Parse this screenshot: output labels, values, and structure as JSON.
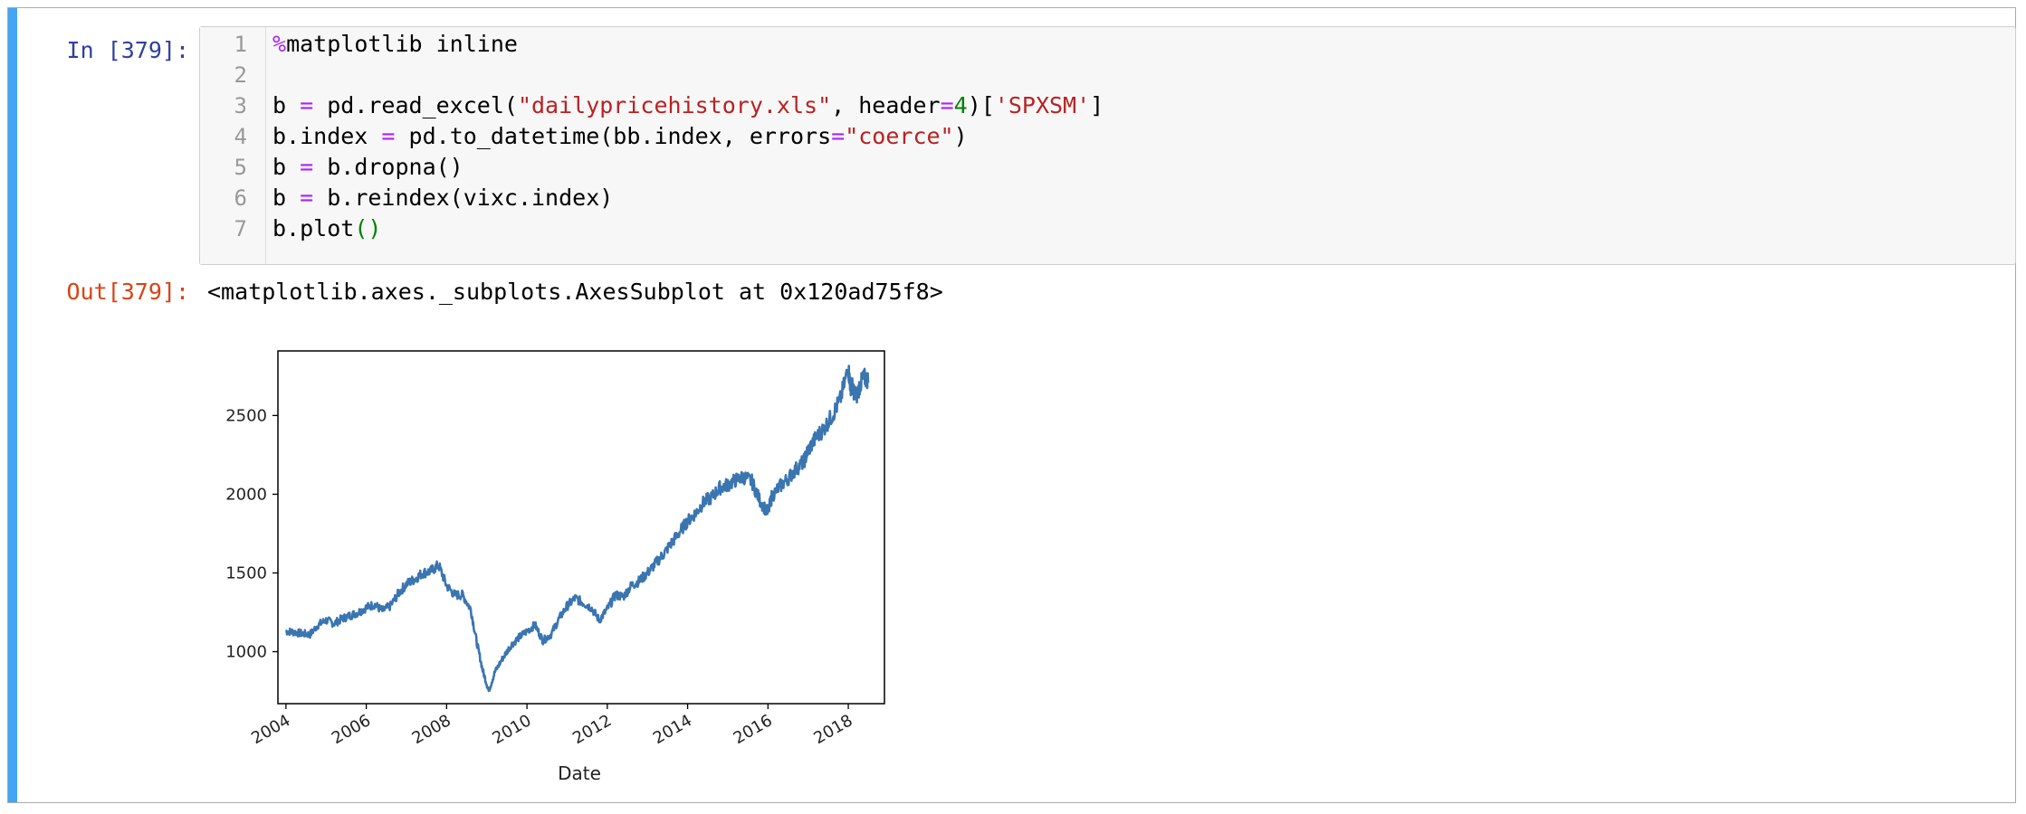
{
  "cell": {
    "in_prompt": "In [379]:",
    "out_prompt": "Out[379]:",
    "code_lines": [
      {
        "num": "1",
        "tokens": [
          {
            "t": "%",
            "c": "k"
          },
          {
            "t": "matplotlib inline",
            "c": ""
          }
        ]
      },
      {
        "num": "2",
        "tokens": []
      },
      {
        "num": "3",
        "tokens": [
          {
            "t": "b ",
            "c": ""
          },
          {
            "t": "=",
            "c": "k"
          },
          {
            "t": " pd.read_excel(",
            "c": ""
          },
          {
            "t": "\"dailypricehistory.xls\"",
            "c": "s"
          },
          {
            "t": ", header",
            "c": ""
          },
          {
            "t": "=",
            "c": "k"
          },
          {
            "t": "4",
            "c": "n"
          },
          {
            "t": ")[",
            "c": ""
          },
          {
            "t": "'SPXSM'",
            "c": "s"
          },
          {
            "t": "]",
            "c": ""
          }
        ]
      },
      {
        "num": "4",
        "tokens": [
          {
            "t": "b.index ",
            "c": ""
          },
          {
            "t": "=",
            "c": "k"
          },
          {
            "t": " pd.to_datetime(bb.index, errors",
            "c": ""
          },
          {
            "t": "=",
            "c": "k"
          },
          {
            "t": "\"coerce\"",
            "c": "s"
          },
          {
            "t": ")",
            "c": ""
          }
        ]
      },
      {
        "num": "5",
        "tokens": [
          {
            "t": "b ",
            "c": ""
          },
          {
            "t": "=",
            "c": "k"
          },
          {
            "t": " b.dropna()",
            "c": ""
          }
        ]
      },
      {
        "num": "6",
        "tokens": [
          {
            "t": "b ",
            "c": ""
          },
          {
            "t": "=",
            "c": "k"
          },
          {
            "t": " b.reindex(vixc.index)",
            "c": ""
          }
        ]
      },
      {
        "num": "7",
        "tokens": [
          {
            "t": "b.plot",
            "c": ""
          },
          {
            "t": "()",
            "c": "n"
          }
        ]
      }
    ],
    "output_text": "<matplotlib.axes._subplots.AxesSubplot at 0x120ad75f8>"
  },
  "chart_data": {
    "type": "line",
    "xlabel": "Date",
    "ylabel": "",
    "title": "",
    "xlim": [
      2003.8,
      2018.9
    ],
    "ylim": [
      670,
      2910
    ],
    "x_ticks": [
      2004,
      2006,
      2008,
      2010,
      2012,
      2014,
      2016,
      2018
    ],
    "x_tick_labels": [
      "2004",
      "2006",
      "2008",
      "2010",
      "2012",
      "2014",
      "2016",
      "2018"
    ],
    "y_ticks": [
      1000,
      1500,
      2000,
      2500
    ],
    "y_tick_labels": [
      "1000",
      "1500",
      "2000",
      "2500"
    ],
    "grid": false,
    "line_color": "#3a75b0",
    "series": [
      {
        "x": [
          2004.0,
          2004.2,
          2004.4,
          2004.6,
          2004.8,
          2005.0,
          2005.2,
          2005.4,
          2005.6,
          2005.8,
          2006.0,
          2006.2,
          2006.4,
          2006.6,
          2006.8,
          2007.0,
          2007.2,
          2007.4,
          2007.6,
          2007.8,
          2008.0,
          2008.2,
          2008.4,
          2008.6,
          2008.75,
          2008.9,
          2009.05,
          2009.2,
          2009.4,
          2009.6,
          2009.8,
          2010.0,
          2010.2,
          2010.4,
          2010.6,
          2010.8,
          2011.0,
          2011.2,
          2011.4,
          2011.6,
          2011.8,
          2012.0,
          2012.2,
          2012.4,
          2012.6,
          2012.8,
          2013.0,
          2013.2,
          2013.4,
          2013.6,
          2013.8,
          2014.0,
          2014.2,
          2014.4,
          2014.6,
          2014.8,
          2015.0,
          2015.2,
          2015.4,
          2015.6,
          2015.8,
          2016.0,
          2016.1,
          2016.3,
          2016.5,
          2016.7,
          2016.9,
          2017.0,
          2017.2,
          2017.4,
          2017.6,
          2017.8,
          2018.0,
          2018.05,
          2018.1,
          2018.2,
          2018.3,
          2018.4,
          2018.5
        ],
        "values": [
          1130,
          1125,
          1115,
          1110,
          1170,
          1200,
          1180,
          1210,
          1230,
          1250,
          1280,
          1300,
          1260,
          1290,
          1370,
          1430,
          1460,
          1500,
          1510,
          1550,
          1420,
          1360,
          1360,
          1270,
          1060,
          880,
          750,
          870,
          960,
          1040,
          1090,
          1130,
          1170,
          1070,
          1110,
          1210,
          1290,
          1340,
          1310,
          1280,
          1200,
          1270,
          1360,
          1350,
          1420,
          1450,
          1500,
          1560,
          1620,
          1690,
          1760,
          1830,
          1880,
          1950,
          1980,
          2040,
          2060,
          2090,
          2110,
          2080,
          1960,
          1880,
          1990,
          2050,
          2100,
          2160,
          2210,
          2280,
          2360,
          2420,
          2500,
          2600,
          2800,
          2690,
          2680,
          2620,
          2700,
          2740,
          2720
        ]
      }
    ]
  }
}
